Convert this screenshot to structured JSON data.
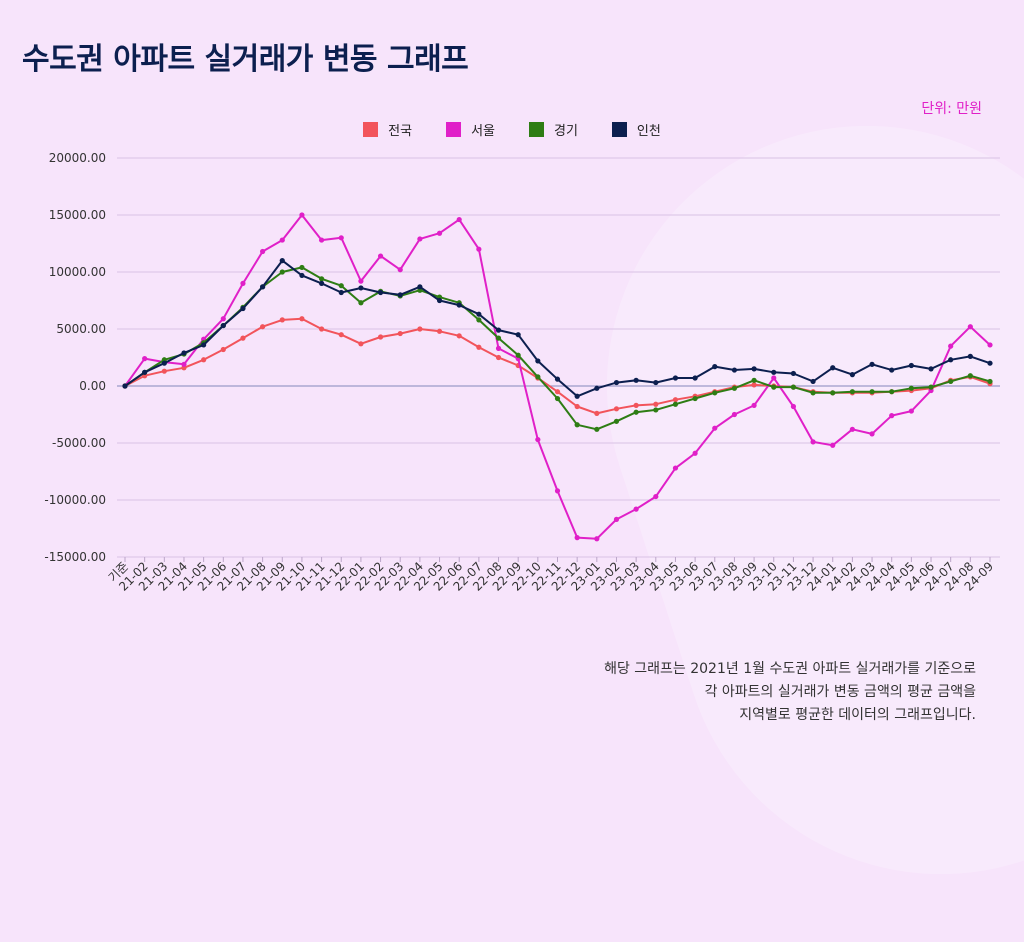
{
  "title": "수도권 아파트 실거래가 변동 그래프",
  "unit_label": "단위: 만원",
  "note_lines": [
    "해당 그래프는 2021년 1월 수도권 아파트 실거래가를 기준으로",
    "각 아파트의 실거래가 변동 금액의 평균 금액을",
    "지역별로 평균한 데이터의 그래프입니다."
  ],
  "chart_data": {
    "type": "line",
    "ylim": [
      -15000,
      20000
    ],
    "yticks": [
      "20000.00",
      "15000.00",
      "10000.00",
      "5000.00",
      "0.00",
      "-5000.00",
      "-10000.00",
      "-15000.00"
    ],
    "ytick_values": [
      20000,
      15000,
      10000,
      5000,
      0,
      -5000,
      -10000,
      -15000
    ],
    "grid": true,
    "legend_position": "top-center",
    "categories": [
      "기준",
      "21-02",
      "21-03",
      "21-04",
      "21-05",
      "21-06",
      "21-07",
      "21-08",
      "21-09",
      "21-10",
      "21-11",
      "21-12",
      "22-01",
      "22-02",
      "22-03",
      "22-04",
      "22-05",
      "22-06",
      "22-07",
      "22-08",
      "22-09",
      "22-10",
      "22-11",
      "22-12",
      "23-01",
      "23-02",
      "23-03",
      "23-04",
      "23-05",
      "23-06",
      "23-07",
      "23-08",
      "23-09",
      "23-10",
      "23-11",
      "23-12",
      "24-01",
      "24-02",
      "24-03",
      "24-04",
      "24-05",
      "24-06",
      "24-07",
      "24-08",
      "24-09"
    ],
    "series": [
      {
        "name": "전국",
        "color": "#f2545b",
        "values": [
          0,
          900,
          1300,
          1600,
          2300,
          3200,
          4200,
          5200,
          5800,
          5900,
          5000,
          4500,
          3700,
          4300,
          4600,
          5000,
          4800,
          4400,
          3400,
          2500,
          1800,
          700,
          -500,
          -1800,
          -2400,
          -2000,
          -1700,
          -1600,
          -1200,
          -900,
          -500,
          -100,
          100,
          0,
          -100,
          -500,
          -600,
          -600,
          -600,
          -500,
          -400,
          -200,
          500,
          800,
          200
        ]
      },
      {
        "name": "서울",
        "color": "#e020c8",
        "values": [
          0,
          2400,
          2100,
          1900,
          4100,
          5900,
          9000,
          11800,
          12800,
          15000,
          12800,
          13000,
          9200,
          11400,
          10200,
          12900,
          13400,
          14600,
          12000,
          3300,
          2400,
          -4700,
          -9200,
          -13300,
          -13400,
          -11700,
          -10800,
          -9700,
          -7200,
          -5900,
          -3700,
          -2500,
          -1700,
          700,
          -1800,
          -4900,
          -5200,
          -3800,
          -4200,
          -2600,
          -2200,
          -400,
          3500,
          5200,
          3600
        ]
      },
      {
        "name": "경기",
        "color": "#2e7d14",
        "values": [
          0,
          1200,
          2300,
          2800,
          3800,
          5300,
          6900,
          8700,
          10000,
          10400,
          9400,
          8800,
          7300,
          8300,
          7900,
          8400,
          7800,
          7300,
          5800,
          4200,
          2700,
          800,
          -1100,
          -3400,
          -3800,
          -3100,
          -2300,
          -2100,
          -1600,
          -1100,
          -600,
          -200,
          500,
          -100,
          -100,
          -600,
          -600,
          -500,
          -500,
          -500,
          -200,
          -100,
          400,
          900,
          400
        ]
      },
      {
        "name": "인천",
        "color": "#0c1f4f",
        "values": [
          0,
          1200,
          2000,
          2900,
          3600,
          5300,
          6800,
          8700,
          11000,
          9700,
          9000,
          8200,
          8600,
          8200,
          8000,
          8700,
          7500,
          7100,
          6300,
          4900,
          4500,
          2200,
          600,
          -900,
          -200,
          300,
          500,
          300,
          700,
          700,
          1700,
          1400,
          1500,
          1200,
          1100,
          400,
          1600,
          1000,
          1900,
          1400,
          1800,
          1500,
          2300,
          2600,
          2000
        ]
      }
    ]
  }
}
